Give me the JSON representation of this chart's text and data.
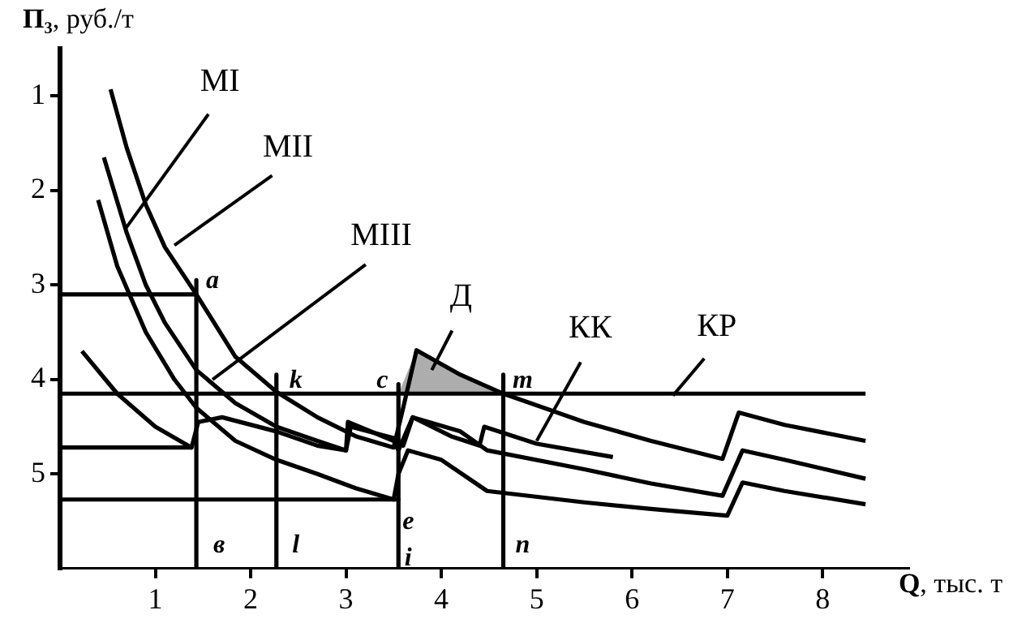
{
  "chart_data": {
    "type": "line",
    "xlabel": "Q, тыс. т",
    "ylabel": "П₃, руб./т",
    "xlim": [
      0,
      8.9
    ],
    "ylim": [
      6,
      0.5
    ],
    "xticks": [
      1,
      2,
      3,
      4,
      5,
      6,
      7,
      8
    ],
    "yticks": [
      1,
      2,
      3,
      4,
      5
    ],
    "grid": false,
    "legend": false,
    "series": [
      {
        "color": "#000000",
        "x": [
          0.53,
          0.7,
          0.9,
          1.1,
          1.43,
          1.84,
          2.27,
          2.7,
          3.1,
          3.5,
          3.6,
          3.74,
          4.2,
          4.65,
          5.5,
          6.2,
          6.95,
          7.12,
          7.6,
          8.45
        ],
        "values": [
          0.93,
          1.55,
          2.15,
          2.6,
          3.1,
          3.76,
          4.13,
          4.4,
          4.6,
          4.72,
          4.3,
          3.69,
          3.95,
          4.15,
          4.45,
          4.65,
          4.84,
          4.35,
          4.48,
          4.65
        ]
      },
      {
        "color": "#000000",
        "x": [
          0.46,
          0.7,
          0.9,
          1.1,
          1.43,
          1.84,
          2.27,
          2.7,
          3.0,
          3.02,
          3.5,
          3.55,
          3.7,
          4.2,
          4.48,
          5.5,
          6.2,
          6.95,
          7.16,
          7.6,
          8.45
        ],
        "values": [
          1.65,
          2.45,
          3.0,
          3.4,
          3.9,
          4.25,
          4.5,
          4.65,
          4.75,
          4.45,
          4.65,
          4.75,
          4.4,
          4.55,
          4.75,
          4.95,
          5.1,
          5.23,
          4.75,
          4.85,
          5.05
        ]
      },
      {
        "color": "#000000",
        "x": [
          0.4,
          0.6,
          0.9,
          1.2,
          1.43,
          1.84,
          2.27,
          2.7,
          3.1,
          3.5,
          3.55,
          3.65,
          4.0,
          4.48,
          5.5,
          6.2,
          7.0,
          7.16,
          7.6,
          8.45
        ],
        "values": [
          2.1,
          2.8,
          3.5,
          4.0,
          4.3,
          4.65,
          4.85,
          5.0,
          5.15,
          5.27,
          5.0,
          4.75,
          4.85,
          5.18,
          5.3,
          5.37,
          5.44,
          5.09,
          5.18,
          5.32
        ]
      },
      {
        "color": "#000000",
        "x": [
          0.23,
          0.6,
          1.0,
          1.38,
          1.45,
          1.7,
          2.27,
          2.7,
          3.0,
          3.05,
          3.5,
          3.6,
          3.7,
          4.1,
          4.4,
          4.45,
          5.0,
          5.8
        ],
        "values": [
          3.7,
          4.15,
          4.5,
          4.72,
          4.45,
          4.4,
          4.55,
          4.7,
          4.75,
          4.5,
          4.62,
          4.7,
          4.4,
          4.6,
          4.7,
          4.5,
          4.68,
          4.82
        ]
      },
      {
        "color": "#000000",
        "x": [
          0,
          8.45
        ],
        "values": [
          4.15,
          4.15
        ]
      },
      {
        "color": "#000000",
        "x": [
          0,
          1.43,
          1.43
        ],
        "values": [
          3.1,
          3.1,
          6
        ]
      },
      {
        "color": "#000000",
        "x": [
          1.43,
          1.43
        ],
        "values": [
          2.95,
          3.1
        ]
      },
      {
        "color": "#000000",
        "x": [
          0,
          1.38
        ],
        "values": [
          4.72,
          4.72
        ]
      },
      {
        "color": "#000000",
        "x": [
          2.27,
          2.27
        ],
        "values": [
          3.95,
          6
        ]
      },
      {
        "color": "#000000",
        "x": [
          0,
          3.55,
          3.55
        ],
        "values": [
          5.27,
          5.27,
          6
        ]
      },
      {
        "color": "#000000",
        "x": [
          3.55,
          3.55
        ],
        "values": [
          4.05,
          5.27
        ]
      },
      {
        "color": "#000000",
        "x": [
          4.65,
          4.65
        ],
        "values": [
          3.95,
          6
        ]
      },
      {
        "type": "area",
        "color": "#777777",
        "x": [
          3.55,
          3.74,
          4.2,
          4.65
        ],
        "values": [
          4.15,
          3.69,
          3.95,
          4.15
        ]
      }
    ],
    "annotations": [
      {
        "text": "MI",
        "x": 0.69,
        "y": 2.4
      },
      {
        "text": "MII",
        "x": 1.2,
        "y": 2.58
      },
      {
        "text": "MIII",
        "x": 1.6,
        "y": 4.0
      },
      {
        "text": "Д",
        "x": 3.9,
        "y": 3.9
      },
      {
        "text": "КК",
        "x": 5.0,
        "y": 4.65
      },
      {
        "text": "КР",
        "x": 6.43,
        "y": 4.17
      },
      {
        "text": "a",
        "x": 1.43,
        "y": 3.1
      },
      {
        "text": "в",
        "x": 1.43,
        "y": 6
      },
      {
        "text": "k",
        "x": 2.27,
        "y": 4.15
      },
      {
        "text": "l",
        "x": 2.27,
        "y": 6
      },
      {
        "text": "c",
        "x": 3.55,
        "y": 4.15
      },
      {
        "text": "e",
        "x": 3.55,
        "y": 5.27
      },
      {
        "text": "i",
        "x": 3.55,
        "y": 6
      },
      {
        "text": "m",
        "x": 4.65,
        "y": 4.15
      },
      {
        "text": "n",
        "x": 4.65,
        "y": 6
      }
    ]
  }
}
